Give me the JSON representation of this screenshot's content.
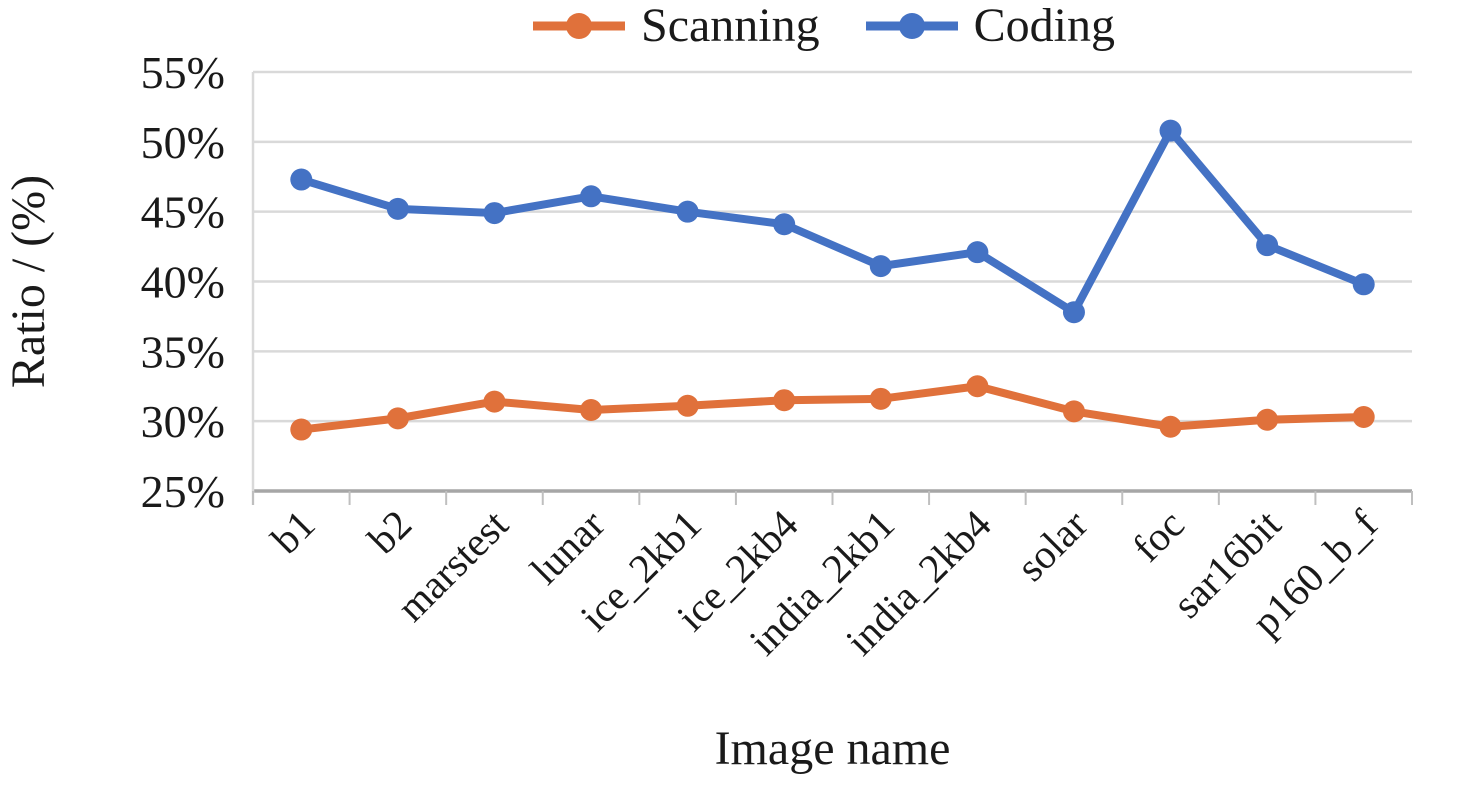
{
  "figure": {
    "background": "#ffffff",
    "text_color": "#1a1a1a",
    "gridline_color": "#d9d9d9",
    "axis_line_color": "#a6a6a6",
    "tick_color": "#bfbfbf"
  },
  "axes": {
    "x_title": "Image name",
    "y_title": "Ratio / (%)"
  },
  "chart_data": {
    "type": "line",
    "title": "",
    "xlabel": "Image name",
    "ylabel": "Ratio / (%)",
    "categories": [
      "b1",
      "b2",
      "marstest",
      "lunar",
      "ice_2kb1",
      "ice_2kb4",
      "india_2kb1",
      "india_2kb4",
      "solar",
      "foc",
      "sar16bit",
      "p160_b_f"
    ],
    "series": [
      {
        "name": "Scanning",
        "color": "#e0713b",
        "values": [
          29.4,
          30.2,
          31.4,
          30.8,
          31.1,
          31.5,
          31.6,
          32.5,
          30.7,
          29.6,
          30.1,
          30.3
        ]
      },
      {
        "name": "Coding",
        "color": "#4472c4",
        "values": [
          47.3,
          45.2,
          44.9,
          46.1,
          45.0,
          44.1,
          41.1,
          42.1,
          37.8,
          50.8,
          42.6,
          39.8
        ]
      }
    ],
    "ylim": [
      25,
      55
    ],
    "y_tick_step": 5,
    "y_ticks": [
      "25%",
      "30%",
      "35%",
      "40%",
      "45%",
      "50%",
      "55%"
    ],
    "grid": true,
    "legend_position": "top"
  }
}
